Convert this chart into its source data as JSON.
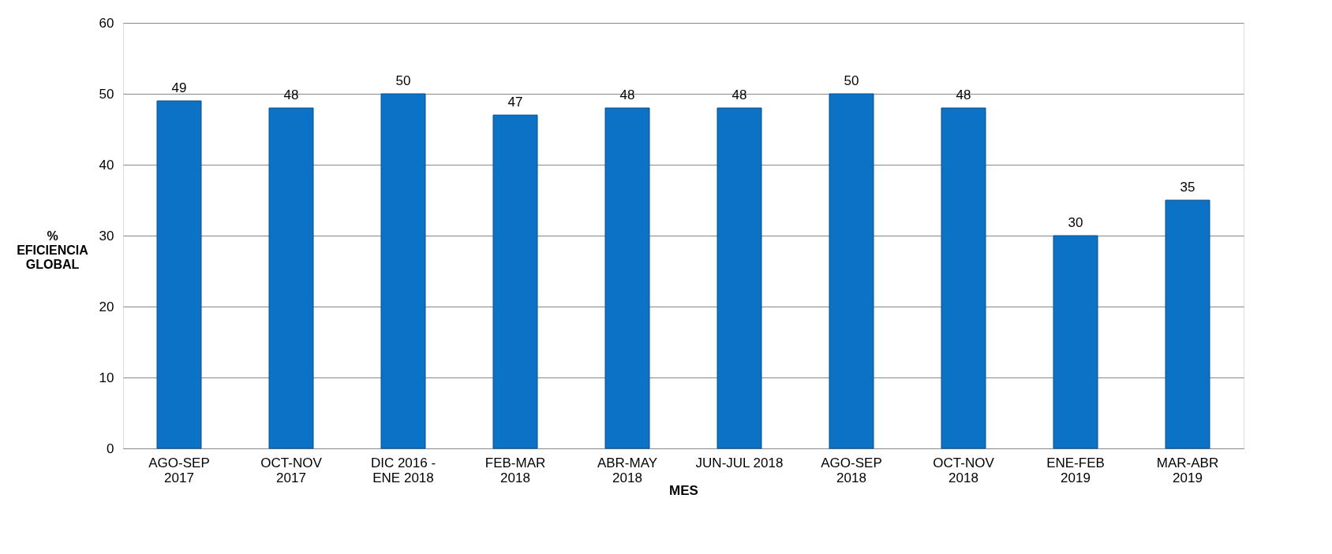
{
  "chart_data": {
    "type": "bar",
    "xlabel": "MES",
    "ylabel": "%\nEFICIENCIA\nGLOBAL",
    "categories": [
      "AGO-SEP\n2017",
      "OCT-NOV\n2017",
      "DIC 2016 -\nENE 2018",
      "FEB-MAR\n2018",
      "ABR-MAY\n2018",
      "JUN-JUL 2018",
      "AGO-SEP\n2018",
      "OCT-NOV\n2018",
      "ENE-FEB\n2019",
      "MAR-ABR\n2019"
    ],
    "values": [
      49,
      48,
      50,
      47,
      48,
      48,
      50,
      48,
      30,
      35
    ],
    "color": "#0b72c6",
    "ylim": [
      0,
      60
    ],
    "yticks": [
      0,
      10,
      20,
      30,
      40,
      50,
      60
    ],
    "grid": "y",
    "data_labels": true
  }
}
